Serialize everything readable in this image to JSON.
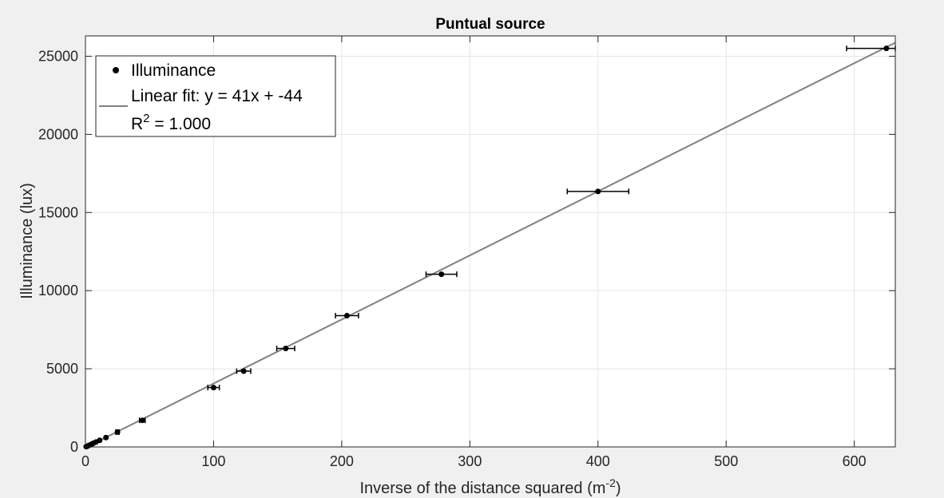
{
  "chart_data": {
    "type": "scatter",
    "title": "Puntual source",
    "xlabel": "Inverse of the distance squared (m",
    "xlabel_sup": "-2",
    "xlabel_suffix": ")",
    "ylabel": "Illuminance (lux)",
    "xlim": [
      0,
      632
    ],
    "ylim": [
      0,
      26300
    ],
    "xticks": [
      0,
      100,
      200,
      300,
      400,
      500,
      600
    ],
    "yticks": [
      0,
      5000,
      10000,
      15000,
      20000,
      25000
    ],
    "grid": true,
    "legend_position": "top-left",
    "series": [
      {
        "name": "Illuminance",
        "kind": "points-with-x-errorbars",
        "color": "#000000",
        "x": [
          625,
          400,
          277.8,
          204.1,
          156.3,
          123.5,
          100,
          44.4,
          25,
          16,
          11.1,
          8.2,
          6.25,
          4.9,
          4,
          2.8,
          2,
          1.2,
          0.6
        ],
        "y": [
          25500,
          16350,
          11050,
          8400,
          6300,
          4850,
          3800,
          1700,
          950,
          600,
          420,
          310,
          240,
          180,
          140,
          100,
          70,
          40,
          20
        ],
        "x_error": [
          31,
          24,
          12,
          9,
          7,
          5.5,
          4.5,
          2.2,
          1.3,
          0.8,
          0.6,
          0.4,
          0.3,
          0.25,
          0.2,
          0.15,
          0.1,
          0.06,
          0.03
        ]
      },
      {
        "name": "Linear fit: y = 41x + -44",
        "name_line2": "R",
        "name_line2_sup": "2",
        "name_line2_suffix": " = 1.000",
        "kind": "line",
        "color": "#808080",
        "slope": 41,
        "intercept": -44
      }
    ]
  }
}
